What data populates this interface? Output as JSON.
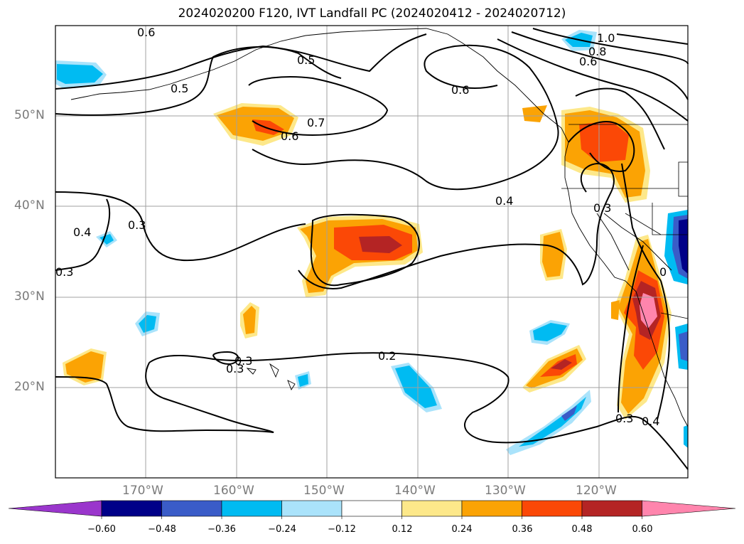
{
  "title": "2024020200 F120, IVT Landfall PC (2024020412 - 2024020712)",
  "map": {
    "lat_ticks": [
      {
        "label": "50°N"
      },
      {
        "label": "40°N"
      },
      {
        "label": "30°N"
      },
      {
        "label": "20°N"
      }
    ],
    "lon_ticks": [
      {
        "label": "170°W"
      },
      {
        "label": "160°W"
      },
      {
        "label": "150°W"
      },
      {
        "label": "140°W"
      },
      {
        "label": "130°W"
      },
      {
        "label": "120°W"
      }
    ],
    "contour_labels": [
      "0.6",
      "0.5",
      "0.5",
      "0.7",
      "0.6",
      "0.6",
      "1.0",
      "0.8",
      "0.6",
      "0.4",
      "0.4",
      "0.3",
      "0.3",
      "0.3",
      "0.2",
      "0.3",
      "0.3",
      "0.4",
      "0.3",
      "0"
    ]
  },
  "colorbar": {
    "colors": [
      "#9a36cc",
      "#000088",
      "#3a5cc8",
      "#00bbf2",
      "#aae3fb",
      "#ffffff",
      "#fde88a",
      "#fba304",
      "#fb4806",
      "#b42424",
      "#ff85ad"
    ],
    "tick_labels": [
      "−0.60",
      "−0.48",
      "−0.36",
      "−0.24",
      "−0.12",
      "0.12",
      "0.24",
      "0.36",
      "0.48",
      "0.60"
    ]
  },
  "colors": {
    "grid": "#a0a0a0",
    "contour": "#000000",
    "tick_label": "#7a7a7a"
  }
}
